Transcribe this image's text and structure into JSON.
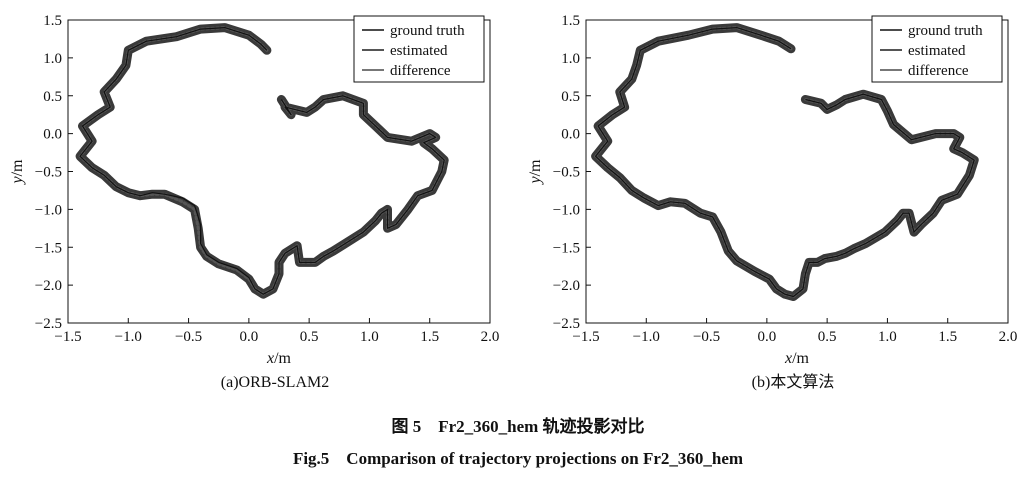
{
  "chart_data": [
    {
      "type": "line",
      "subcaption": "(a)ORB-SLAM2",
      "xlabel_var": "x",
      "xlabel_unit": "/m",
      "ylabel_var": "y",
      "ylabel_unit": "/m",
      "xlim": [
        -1.5,
        2.0
      ],
      "ylim": [
        -2.5,
        1.5
      ],
      "xticks": [
        "−1.5",
        "−1.0",
        "−0.5",
        "0.0",
        "0.5",
        "1.0",
        "1.5",
        "2.0"
      ],
      "yticks": [
        "1.5",
        "1.0",
        "0.5",
        "0.0",
        "−0.5",
        "−1.0",
        "−1.5",
        "−2.0",
        "−2.5"
      ],
      "grid": false,
      "legend_position": "top-right",
      "legend": [
        "ground truth",
        "estimated",
        "difference"
      ],
      "series": [
        {
          "name": "ground truth",
          "color": "#111111",
          "x": [
            0.15,
            0.1,
            0.0,
            -0.2,
            -0.4,
            -0.6,
            -0.85,
            -1.0,
            -1.02,
            -1.1,
            -1.2,
            -1.15,
            -1.25,
            -1.38,
            -1.3,
            -1.4,
            -1.3,
            -1.2,
            -1.1,
            -1.0,
            -0.9,
            -0.8,
            -0.7,
            -0.55,
            -0.45,
            -0.4,
            -0.4,
            -0.35,
            -0.25,
            -0.1,
            0.0,
            0.05,
            0.12,
            0.2,
            0.25,
            0.25,
            0.3,
            0.4,
            0.42,
            0.55,
            0.62,
            0.7,
            0.8,
            0.95,
            1.05,
            1.1,
            1.15,
            1.15,
            1.22,
            1.32,
            1.4,
            1.52,
            1.6,
            1.62,
            1.52,
            1.45,
            1.55,
            1.5,
            1.35,
            1.15,
            1.05,
            0.95,
            0.95,
            0.78,
            0.62,
            0.55,
            0.48,
            0.3,
            0.35,
            0.27
          ],
          "y": [
            1.1,
            1.18,
            1.3,
            1.4,
            1.38,
            1.28,
            1.22,
            1.1,
            0.9,
            0.72,
            0.55,
            0.35,
            0.25,
            0.1,
            -0.1,
            -0.3,
            -0.45,
            -0.55,
            -0.7,
            -0.78,
            -0.82,
            -0.78,
            -0.8,
            -0.85,
            -0.95,
            -1.2,
            -1.45,
            -1.6,
            -1.7,
            -1.78,
            -1.9,
            -2.05,
            -2.12,
            -2.05,
            -1.85,
            -1.7,
            -1.58,
            -1.48,
            -1.7,
            -1.7,
            -1.62,
            -1.55,
            -1.45,
            -1.3,
            -1.15,
            -1.05,
            -1.0,
            -1.25,
            -1.2,
            -1.0,
            -0.82,
            -0.75,
            -0.5,
            -0.35,
            -0.2,
            -0.12,
            -0.05,
            0.0,
            -0.1,
            -0.05,
            0.1,
            0.25,
            0.4,
            0.5,
            0.45,
            0.35,
            0.28,
            0.35,
            0.25,
            0.45
          ]
        },
        {
          "name": "estimated",
          "color": "#555555",
          "x": [
            0.15,
            0.1,
            0.0,
            -0.2,
            -0.4,
            -0.6,
            -0.85,
            -1.0,
            -1.02,
            -1.1,
            -1.2,
            -1.15,
            -1.25,
            -1.38,
            -1.3,
            -1.4,
            -1.3,
            -1.2,
            -1.1,
            -1.0,
            -0.9,
            -0.8,
            -0.7,
            -0.55,
            -0.45,
            -0.42,
            -0.4,
            -0.35,
            -0.25,
            -0.1,
            0.0,
            0.05,
            0.12,
            0.2,
            0.25,
            0.25,
            0.3,
            0.4,
            0.42,
            0.55,
            0.62,
            0.7,
            0.8,
            0.95,
            1.05,
            1.1,
            1.15,
            1.15,
            1.22,
            1.32,
            1.4,
            1.52,
            1.6,
            1.62,
            1.52,
            1.45,
            1.55,
            1.5,
            1.35,
            1.15,
            1.05,
            0.95,
            0.95,
            0.78,
            0.62,
            0.55,
            0.48,
            0.3,
            0.35,
            0.27
          ],
          "y": [
            1.1,
            1.18,
            1.3,
            1.4,
            1.38,
            1.28,
            1.22,
            1.1,
            0.9,
            0.72,
            0.55,
            0.35,
            0.25,
            0.1,
            -0.1,
            -0.3,
            -0.45,
            -0.55,
            -0.7,
            -0.78,
            -0.82,
            -0.8,
            -0.8,
            -0.9,
            -1.0,
            -1.25,
            -1.5,
            -1.62,
            -1.72,
            -1.8,
            -1.92,
            -2.05,
            -2.12,
            -2.05,
            -1.85,
            -1.7,
            -1.58,
            -1.48,
            -1.7,
            -1.7,
            -1.62,
            -1.55,
            -1.45,
            -1.3,
            -1.15,
            -1.05,
            -1.0,
            -1.25,
            -1.2,
            -1.0,
            -0.82,
            -0.75,
            -0.5,
            -0.35,
            -0.2,
            -0.12,
            -0.05,
            0.0,
            -0.1,
            -0.05,
            0.1,
            0.25,
            0.4,
            0.5,
            0.45,
            0.35,
            0.28,
            0.35,
            0.25,
            0.45
          ]
        }
      ]
    },
    {
      "type": "line",
      "subcaption": "(b)本文算法",
      "xlabel_var": "x",
      "xlabel_unit": "/m",
      "ylabel_var": "y",
      "ylabel_unit": "/m",
      "xlim": [
        -1.5,
        2.0
      ],
      "ylim": [
        -2.5,
        1.5
      ],
      "xticks": [
        "−1.5",
        "−1.0",
        "−0.5",
        "0.0",
        "0.5",
        "1.0",
        "1.5",
        "2.0"
      ],
      "yticks": [
        "1.5",
        "1.0",
        "0.5",
        "0.0",
        "−0.5",
        "−1.0",
        "−1.5",
        "−2.0",
        "−2.5"
      ],
      "grid": false,
      "legend_position": "top-right",
      "legend": [
        "ground truth",
        "estimated",
        "difference"
      ],
      "series": [
        {
          "name": "ground truth",
          "color": "#111111",
          "x": [
            0.2,
            0.1,
            -0.05,
            -0.25,
            -0.45,
            -0.65,
            -0.9,
            -1.05,
            -1.08,
            -1.12,
            -1.22,
            -1.18,
            -1.28,
            -1.4,
            -1.32,
            -1.42,
            -1.32,
            -1.22,
            -1.12,
            -1.02,
            -0.9,
            -0.8,
            -0.68,
            -0.55,
            -0.45,
            -0.38,
            -0.32,
            -0.25,
            -0.1,
            0.02,
            0.08,
            0.15,
            0.22,
            0.3,
            0.32,
            0.35,
            0.42,
            0.48,
            0.58,
            0.65,
            0.72,
            0.82,
            0.98,
            1.08,
            1.13,
            1.18,
            1.22,
            1.28,
            1.38,
            1.45,
            1.58,
            1.68,
            1.72,
            1.62,
            1.55,
            1.6,
            1.55,
            1.4,
            1.2,
            1.05,
            1.0,
            0.95,
            0.8,
            0.65,
            0.58,
            0.5,
            0.45,
            0.32
          ],
          "y": [
            1.12,
            1.22,
            1.3,
            1.4,
            1.38,
            1.3,
            1.22,
            1.1,
            0.9,
            0.72,
            0.55,
            0.35,
            0.25,
            0.1,
            -0.1,
            -0.3,
            -0.45,
            -0.58,
            -0.75,
            -0.85,
            -0.95,
            -0.9,
            -0.92,
            -1.05,
            -1.1,
            -1.3,
            -1.55,
            -1.68,
            -1.82,
            -1.92,
            -2.05,
            -2.12,
            -2.15,
            -2.05,
            -1.85,
            -1.7,
            -1.7,
            -1.65,
            -1.62,
            -1.58,
            -1.52,
            -1.45,
            -1.3,
            -1.15,
            -1.05,
            -1.05,
            -1.3,
            -1.2,
            -1.05,
            -0.88,
            -0.8,
            -0.55,
            -0.35,
            -0.25,
            -0.2,
            -0.05,
            0.0,
            0.0,
            -0.08,
            0.12,
            0.3,
            0.45,
            0.52,
            0.45,
            0.38,
            0.32,
            0.4,
            0.45
          ]
        },
        {
          "name": "estimated",
          "color": "#555555",
          "x": [
            0.2,
            0.1,
            -0.05,
            -0.25,
            -0.45,
            -0.65,
            -0.9,
            -1.05,
            -1.08,
            -1.12,
            -1.22,
            -1.18,
            -1.28,
            -1.4,
            -1.32,
            -1.42,
            -1.32,
            -1.22,
            -1.12,
            -1.02,
            -0.9,
            -0.8,
            -0.68,
            -0.55,
            -0.45,
            -0.38,
            -0.32,
            -0.25,
            -0.1,
            0.02,
            0.08,
            0.15,
            0.22,
            0.3,
            0.32,
            0.35,
            0.42,
            0.48,
            0.58,
            0.65,
            0.72,
            0.82,
            0.98,
            1.08,
            1.13,
            1.18,
            1.22,
            1.28,
            1.38,
            1.45,
            1.58,
            1.68,
            1.72,
            1.62,
            1.55,
            1.6,
            1.55,
            1.4,
            1.2,
            1.05,
            1.0,
            0.95,
            0.8,
            0.65,
            0.58,
            0.5,
            0.45,
            0.32
          ],
          "y": [
            1.12,
            1.22,
            1.3,
            1.4,
            1.38,
            1.3,
            1.22,
            1.1,
            0.9,
            0.72,
            0.55,
            0.35,
            0.25,
            0.1,
            -0.1,
            -0.3,
            -0.45,
            -0.58,
            -0.75,
            -0.85,
            -0.95,
            -0.9,
            -0.92,
            -1.05,
            -1.1,
            -1.3,
            -1.55,
            -1.68,
            -1.82,
            -1.92,
            -2.05,
            -2.12,
            -2.15,
            -2.05,
            -1.85,
            -1.7,
            -1.7,
            -1.65,
            -1.62,
            -1.58,
            -1.52,
            -1.45,
            -1.3,
            -1.15,
            -1.05,
            -1.05,
            -1.3,
            -1.2,
            -1.05,
            -0.88,
            -0.8,
            -0.55,
            -0.35,
            -0.25,
            -0.2,
            -0.05,
            0.0,
            0.0,
            -0.08,
            0.12,
            0.3,
            0.45,
            0.52,
            0.45,
            0.38,
            0.32,
            0.4,
            0.45
          ]
        }
      ]
    }
  ],
  "captions": {
    "chinese": "图 5　Fr2_360_hem 轨迹投影对比",
    "english": "Fig.5　Comparison of trajectory projections on Fr2_360_hem"
  }
}
